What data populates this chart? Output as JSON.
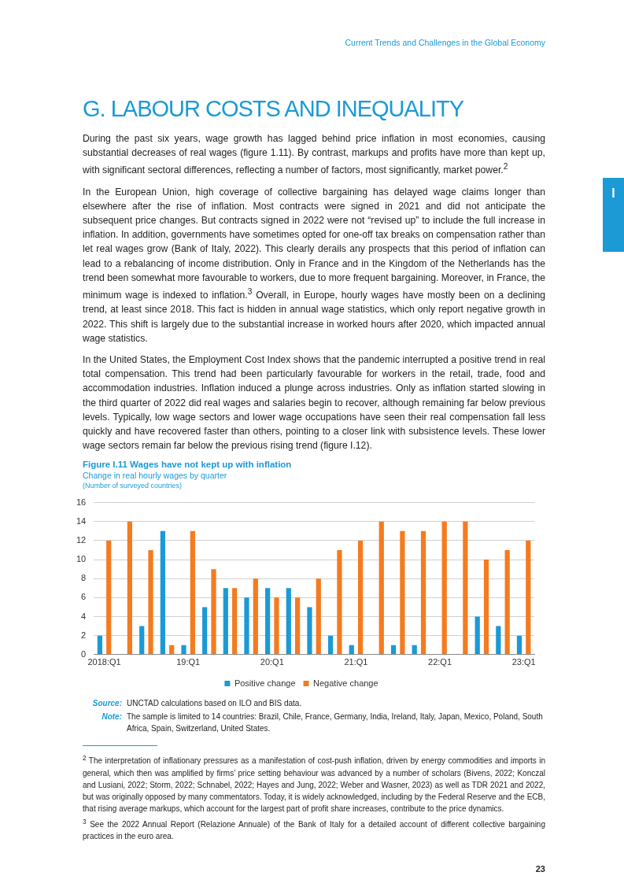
{
  "chart_data": {
    "type": "bar",
    "title": "Figure I.11  Wages have not kept up with inflation",
    "subtitle": "Change in real hourly wages by quarter",
    "categories": [
      "2018:Q1",
      null,
      null,
      null,
      "19:Q1",
      null,
      null,
      null,
      "20:Q1",
      null,
      null,
      null,
      "21:Q1",
      null,
      null,
      null,
      "22:Q1",
      null,
      null,
      null,
      "23:Q1"
    ],
    "series": [
      {
        "name": "Positive change",
        "color": "#1b9ad6",
        "values": [
          2,
          0,
          3,
          13,
          1,
          5,
          7,
          6,
          7,
          7,
          5,
          2,
          1,
          0,
          1,
          1,
          0,
          0,
          4,
          3,
          2
        ]
      },
      {
        "name": "Negative change",
        "color": "#f47b20",
        "values": [
          12,
          14,
          11,
          1,
          13,
          9,
          7,
          8,
          6,
          6,
          8,
          11,
          12,
          14,
          13,
          13,
          14,
          14,
          10,
          11,
          12
        ]
      }
    ],
    "ylim": [
      0,
      16
    ],
    "yticks": [
      0,
      2,
      4,
      6,
      8,
      10,
      12,
      14,
      16
    ],
    "grid": "y",
    "legend": "bottom",
    "annotations": [
      "Current Trends and Challenges in the Global Economy",
      "I",
      "G. LABOUR COSTS AND INEQUALITY",
      "During the past six years, wage growth has lagged behind price inflation in most economies, causing substantial decreases of real wages (figure 1.11). By contrast, markups and profits have more than kept up, with significant sectoral differences, reflecting a number of factors, most significantly, market power.$^{2}$",
      "In the European Union, high coverage of collective bargaining has delayed wage claims longer than elsewhere after the rise of inflation. Most contracts were signed in 2021 and did not anticipate the subsequent price changes. But contracts signed in 2022 were not “revised up” to include the full increase in inflation. In addition, governments have sometimes opted for one-off tax breaks on compensation rather than let real wages grow (Bank of Italy, 2022). This clearly derails any prospects that this period of inflation can lead to a rebalancing of income distribution. Only in France and in the Kingdom of the Netherlands has the trend been somewhat more favourable to workers, due to more frequent bargaining. Moreover, in France, the minimum wage is indexed to inflation.$^{3}$ Overall, in Europe, hourly wages have mostly been on a declining trend, at least since 2018. This fact is hidden in annual wage statistics, which only report negative growth in 2022. This shift is largely due to the substantial increase in worked hours after 2020, which impacted annual wage statistics.",
      "In the United States, the Employment Cost Index shows that the pandemic interrupted a positive trend in real total compensation. This trend had been particularly favourable for workers in the retail, trade, food and accommodation industries. Inflation induced a plunge across industries. Only as inflation started slowing in the third quarter of 2022 did real wages and salaries begin to recover, although remaining far below previous levels. Typically, low wage sectors and lower wage occupations have seen their real compensation fall less quickly and have recovered faster than others, pointing to a closer link with subsistence levels. These lower wage sectors remain far below the previous rising trend (figure I.12).",
      "(Number of surveyed countries)",
      "Source: UNCTAD calculations based on ILO and BIS data.",
      "Note: The sample is limited to 14 countries: Brazil, Chile, France, Germany, India, Ireland, Italy, Japan, Mexico, Poland, South Africa, Spain, Switzerland, United States.",
      "$^{2}$ The interpretation of inflationary pressures as a manifestation of cost-push inflation, driven by energy commodities and imports in general, which then was amplified by firms’ price setting behaviour was advanced by a number of scholars (Bivens, 2022; Konczal and Lusiani, 2022; Storm, 2022; Schnabel, 2022; Hayes and Jung, 2022; Weber and Wasner, 2023) as well as TDR 2021 and 2022, but was originally opposed by many commentators. Today, it is widely acknowledged, including by the Federal Reserve and the ECB, that rising average markups, which account for the largest part of profit share increases, contribute to the price dynamics.",
      "$^{3}$ See the 2022 Annual Report (Relazione Annuale) of the Bank of Italy for a detailed account of different collective bargaining practices in the euro area.",
      "23"
    ]
  }
}
